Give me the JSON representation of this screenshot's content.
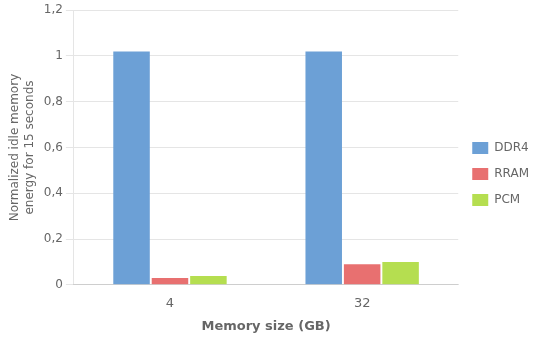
{
  "chart_data": {
    "type": "bar",
    "categories": [
      "4",
      "32"
    ],
    "series": [
      {
        "name": "DDR4",
        "color": "#6CA0D6",
        "values": [
          1.02,
          1.02
        ]
      },
      {
        "name": "RRAM",
        "color": "#E87070",
        "values": [
          0.03,
          0.09
        ]
      },
      {
        "name": "PCM",
        "color": "#B5DE50",
        "values": [
          0.038,
          0.1
        ]
      }
    ],
    "ylabel": "Normalized idle memory\nenergy for 15 seconds",
    "xlabel": "Memory size (GB)",
    "ylim": [
      0,
      1.2
    ],
    "yticks": [
      0,
      {
        "value": 0.2,
        "label": "0,2"
      },
      {
        "value": 0.4,
        "label": "0,4"
      },
      {
        "value": 0.6,
        "label": "0,6"
      },
      {
        "value": 0.8,
        "label": "0,8"
      },
      1,
      {
        "value": 1.2,
        "label": "1,2"
      }
    ],
    "grid": "y",
    "legend": "right"
  }
}
